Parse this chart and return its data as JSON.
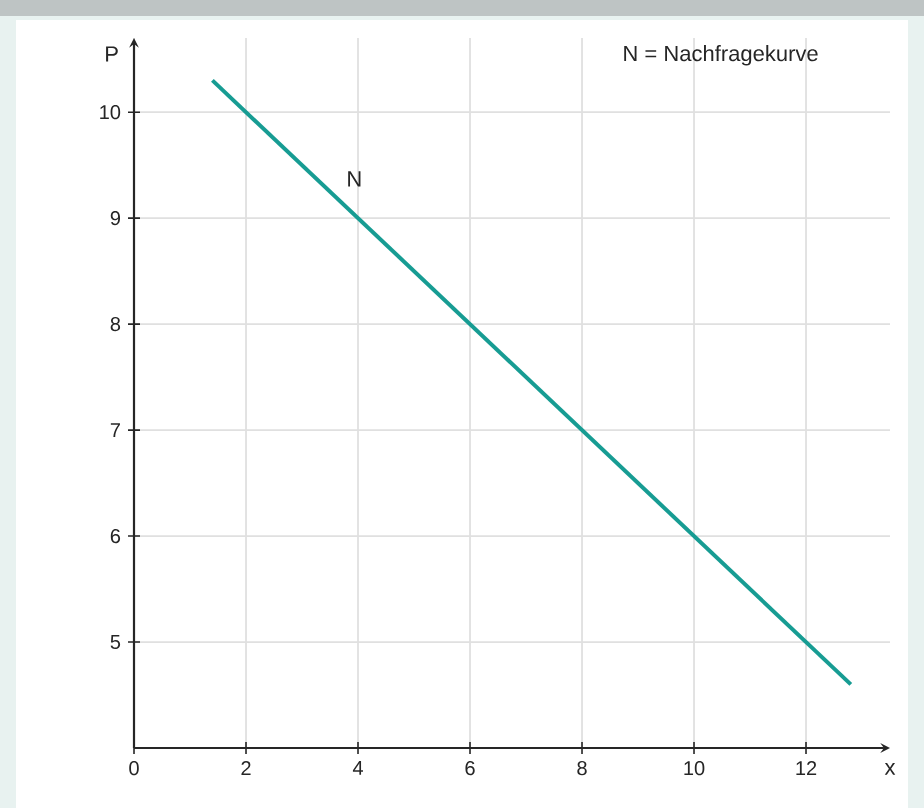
{
  "chart_data": {
    "type": "line",
    "xlabel": "x",
    "ylabel": "P",
    "x": [
      1.4,
      12.8
    ],
    "series": [
      {
        "name": "N",
        "color": "#179c93",
        "values": [
          10.3,
          4.6
        ]
      }
    ],
    "xlim": [
      0,
      13.5
    ],
    "ylim": [
      4,
      10.7
    ],
    "xticks": [
      0,
      2,
      4,
      6,
      8,
      10,
      12
    ],
    "yticks": [
      5,
      6,
      7,
      8,
      9,
      10
    ],
    "grid": true,
    "marker": "none",
    "line_style": "solid",
    "annotations": [
      "N = Nachfragekurve"
    ]
  }
}
